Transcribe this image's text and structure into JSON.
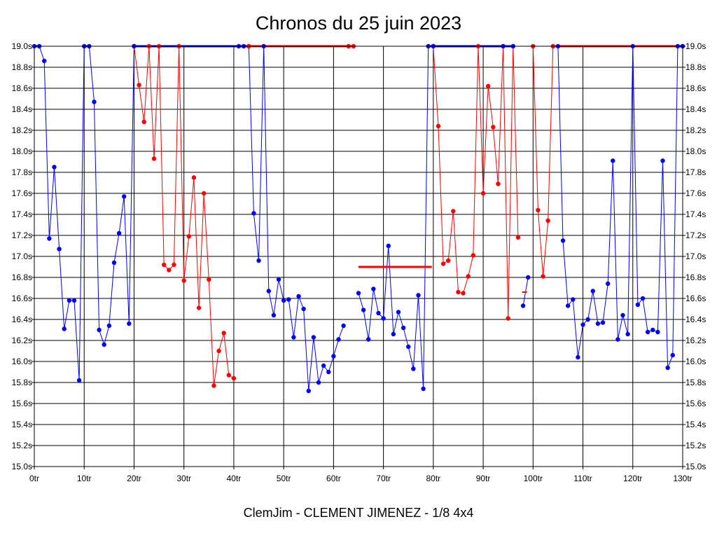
{
  "title": "Chronos du 25 juin 2023",
  "caption": "ClemJim - CLEMENT JIMENEZ - 1/8 4x4",
  "chart_data": {
    "type": "line",
    "title": "Chronos du 25 juin 2023",
    "xlabel": "",
    "ylabel": "",
    "xlim": [
      0,
      130
    ],
    "ylim": [
      15.0,
      19.0
    ],
    "x_ticks": [
      0,
      10,
      20,
      30,
      40,
      50,
      60,
      70,
      80,
      90,
      100,
      110,
      120,
      130
    ],
    "x_tick_labels": [
      "0tr",
      "10tr",
      "20tr",
      "30tr",
      "40tr",
      "50tr",
      "60tr",
      "70tr",
      "80tr",
      "90tr",
      "100tr",
      "110tr",
      "120tr",
      "130tr"
    ],
    "y_ticks": [
      15.0,
      15.2,
      15.4,
      15.6,
      15.8,
      16.0,
      16.2,
      16.4,
      16.6,
      16.8,
      17.0,
      17.2,
      17.4,
      17.6,
      17.8,
      18.0,
      18.2,
      18.4,
      18.6,
      18.8,
      19.0
    ],
    "y_tick_labels": [
      "15.0s",
      "15.2s",
      "15.4s",
      "15.6s",
      "15.8s",
      "16.0s",
      "16.2s",
      "16.4s",
      "16.6s",
      "16.8s",
      "17.0s",
      "17.2s",
      "17.4s",
      "17.6s",
      "17.8s",
      "18.0s",
      "18.2s",
      "18.4s",
      "18.6s",
      "18.8s",
      "19.0s"
    ],
    "grid": true,
    "series": [
      {
        "color": "#0000ff",
        "points": [
          [
            0,
            19.0
          ],
          [
            1,
            19.0
          ],
          [
            2,
            18.86
          ],
          [
            3,
            17.17
          ],
          [
            4,
            17.85
          ],
          [
            5,
            17.07
          ],
          [
            6,
            16.31
          ],
          [
            7,
            16.58
          ],
          [
            8,
            16.58
          ],
          [
            9,
            15.82
          ],
          [
            10,
            19.0
          ],
          [
            11,
            19.0
          ],
          [
            12,
            18.47
          ],
          [
            13,
            16.3
          ],
          [
            14,
            16.16
          ],
          [
            15,
            16.34
          ],
          [
            16,
            16.94
          ],
          [
            17,
            17.22
          ],
          [
            18,
            17.57
          ],
          [
            19,
            16.36
          ],
          [
            20,
            19.0
          ]
        ]
      },
      {
        "color": "#ff0000",
        "points": [
          [
            20,
            19.0
          ],
          [
            21,
            18.63
          ],
          [
            22,
            18.28
          ],
          [
            23,
            19.0
          ],
          [
            24,
            17.93
          ],
          [
            25,
            19.0
          ],
          [
            26,
            16.92
          ],
          [
            27,
            16.87
          ],
          [
            28,
            16.92
          ],
          [
            29,
            19.0
          ],
          [
            30,
            16.77
          ],
          [
            31,
            17.19
          ],
          [
            32,
            17.75
          ],
          [
            33,
            16.51
          ],
          [
            34,
            17.6
          ],
          [
            35,
            16.78
          ],
          [
            36,
            15.77
          ],
          [
            37,
            16.1
          ],
          [
            38,
            16.27
          ],
          [
            39,
            15.87
          ],
          [
            40,
            15.84
          ]
        ]
      },
      {
        "color": "#0000ff",
        "points": [
          [
            20,
            19.0
          ],
          [
            41,
            19.0
          ],
          [
            42,
            19.0
          ],
          [
            43,
            19.0
          ],
          [
            44,
            17.41
          ],
          [
            45,
            16.96
          ],
          [
            46,
            19.0
          ],
          [
            47,
            16.67
          ],
          [
            48,
            16.44
          ],
          [
            49,
            16.78
          ],
          [
            50,
            16.58
          ],
          [
            51,
            16.59
          ],
          [
            52,
            16.23
          ],
          [
            53,
            16.62
          ],
          [
            54,
            16.5
          ],
          [
            55,
            15.72
          ],
          [
            56,
            16.23
          ],
          [
            57,
            15.8
          ],
          [
            58,
            15.96
          ],
          [
            59,
            15.9
          ],
          [
            60,
            16.05
          ],
          [
            61,
            16.21
          ],
          [
            62,
            16.34
          ]
        ]
      },
      {
        "color": "#ff0000",
        "points": [
          [
            43,
            19.0
          ],
          [
            63,
            19.0
          ],
          [
            64,
            19.0
          ]
        ]
      },
      {
        "color": "#0000ff",
        "points": [
          [
            65,
            16.65
          ],
          [
            66,
            16.49
          ],
          [
            67,
            16.21
          ],
          [
            68,
            16.69
          ],
          [
            69,
            16.46
          ],
          [
            70,
            16.41
          ],
          [
            71,
            17.1
          ],
          [
            72,
            16.26
          ],
          [
            73,
            16.47
          ],
          [
            74,
            16.32
          ],
          [
            75,
            16.14
          ],
          [
            76,
            15.93
          ],
          [
            77,
            16.63
          ],
          [
            78,
            15.74
          ],
          [
            79,
            19.0
          ],
          [
            80,
            19.0
          ]
        ]
      },
      {
        "color": "#ff0000",
        "points": [
          [
            80,
            19.0
          ],
          [
            81,
            18.24
          ],
          [
            82,
            16.93
          ],
          [
            83,
            16.96
          ],
          [
            84,
            17.43
          ],
          [
            85,
            16.66
          ],
          [
            86,
            16.65
          ],
          [
            87,
            16.81
          ],
          [
            88,
            17.01
          ],
          [
            89,
            19.0
          ],
          [
            90,
            17.6
          ],
          [
            91,
            18.62
          ],
          [
            92,
            18.23
          ],
          [
            93,
            17.69
          ],
          [
            94,
            19.0
          ],
          [
            95,
            16.41
          ],
          [
            96,
            19.0
          ],
          [
            97,
            17.18
          ]
        ]
      },
      {
        "color": "#0000ff",
        "points": [
          [
            80,
            19.0
          ],
          [
            94,
            19.0
          ],
          [
            96,
            19.0
          ]
        ]
      },
      {
        "color": "#0000ff",
        "points": [
          [
            98,
            16.53
          ],
          [
            99,
            16.8
          ]
        ]
      },
      {
        "color": "#ff0000",
        "points": [
          [
            100,
            19.0
          ],
          [
            101,
            17.44
          ],
          [
            102,
            16.81
          ],
          [
            103,
            17.34
          ],
          [
            104,
            19.0
          ],
          [
            130,
            19.0
          ]
        ]
      },
      {
        "color": "#0000ff",
        "points": [
          [
            105,
            19.0
          ],
          [
            106,
            17.15
          ],
          [
            107,
            16.53
          ],
          [
            108,
            16.59
          ],
          [
            109,
            16.04
          ],
          [
            110,
            16.35
          ],
          [
            111,
            16.4
          ],
          [
            112,
            16.67
          ],
          [
            113,
            16.36
          ],
          [
            114,
            16.37
          ],
          [
            115,
            16.74
          ],
          [
            116,
            17.91
          ],
          [
            117,
            16.21
          ],
          [
            118,
            16.44
          ],
          [
            119,
            16.26
          ],
          [
            120,
            19.0
          ],
          [
            121,
            16.54
          ],
          [
            122,
            16.6
          ],
          [
            123,
            16.28
          ],
          [
            124,
            16.3
          ],
          [
            125,
            16.28
          ],
          [
            126,
            17.91
          ],
          [
            127,
            15.94
          ],
          [
            128,
            16.06
          ],
          [
            129,
            19.0
          ],
          [
            130,
            19.0
          ]
        ]
      }
    ],
    "extra_segments": [
      {
        "color": "#ff0000",
        "x1": 65,
        "x2": 79.7,
        "y": 16.9,
        "width": 3
      },
      {
        "color": "#ff0000",
        "x1": 97.8,
        "x2": 98.8,
        "y": 16.66,
        "width": 2
      }
    ]
  }
}
